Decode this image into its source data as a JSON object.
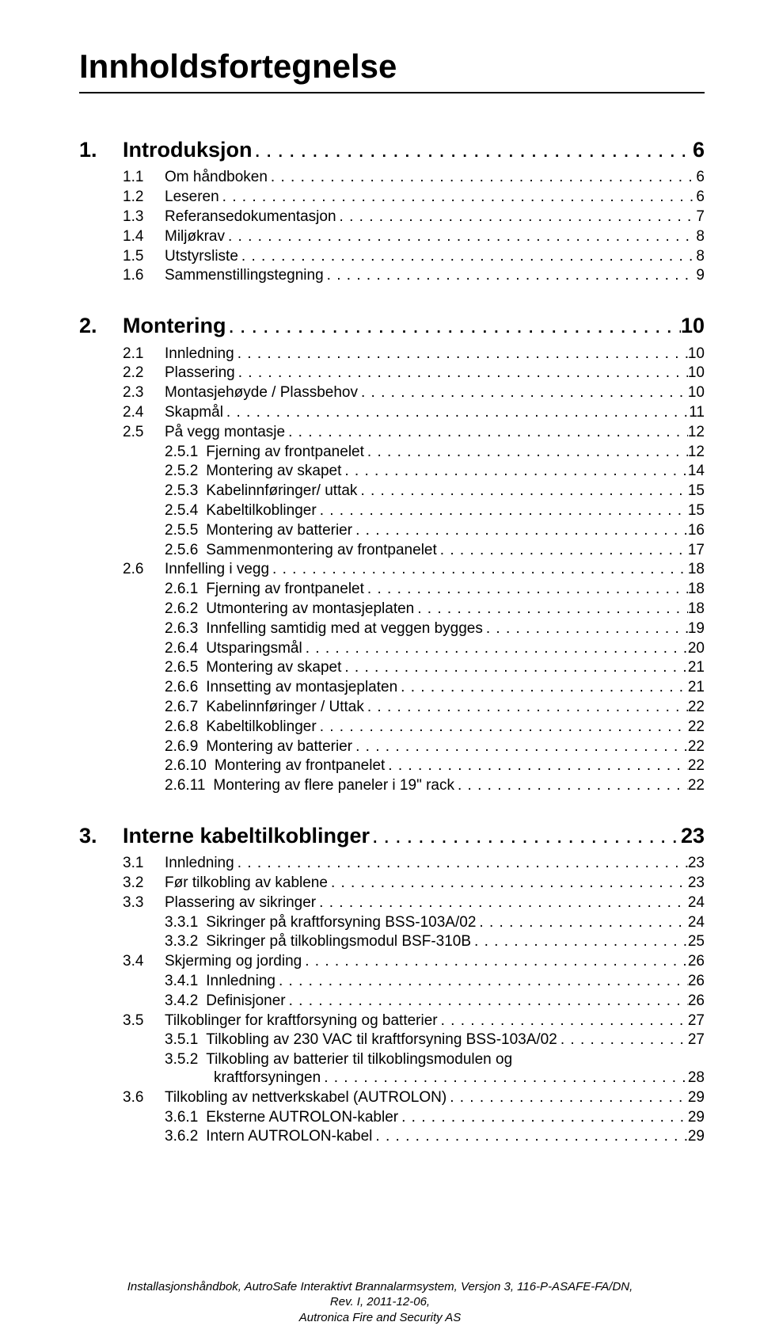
{
  "title": "Innholdsfortegnelse",
  "sections": [
    {
      "lvl": 1,
      "num": "1.",
      "label": "Introduksjon",
      "page": "6"
    },
    {
      "lvl": 2,
      "num": "1.1",
      "label": "Om håndboken",
      "page": "6"
    },
    {
      "lvl": 2,
      "num": "1.2",
      "label": "Leseren",
      "page": "6"
    },
    {
      "lvl": 2,
      "num": "1.3",
      "label": "Referansedokumentasjon",
      "page": "7"
    },
    {
      "lvl": 2,
      "num": "1.4",
      "label": "Miljøkrav",
      "page": "8"
    },
    {
      "lvl": 2,
      "num": "1.5",
      "label": "Utstyrsliste",
      "page": "8"
    },
    {
      "lvl": 2,
      "num": "1.6",
      "label": "Sammenstillingstegning",
      "page": "9"
    },
    {
      "lvl": 1,
      "num": "2.",
      "label": "Montering",
      "page": "10"
    },
    {
      "lvl": 2,
      "num": "2.1",
      "label": "Innledning",
      "page": "10"
    },
    {
      "lvl": 2,
      "num": "2.2",
      "label": "Plassering",
      "page": "10"
    },
    {
      "lvl": 2,
      "num": "2.3",
      "label": "Montasjehøyde / Plassbehov",
      "page": "10"
    },
    {
      "lvl": 2,
      "num": "2.4",
      "label": "Skapmål",
      "page": "11"
    },
    {
      "lvl": 2,
      "num": "2.5",
      "label": "På vegg montasje",
      "page": "12"
    },
    {
      "lvl": 3,
      "num": "2.5.1",
      "label": "Fjerning av frontpanelet",
      "page": "12"
    },
    {
      "lvl": 3,
      "num": "2.5.2",
      "label": "Montering av skapet",
      "page": "14"
    },
    {
      "lvl": 3,
      "num": "2.5.3",
      "label": "Kabelinnføringer/ uttak",
      "page": "15"
    },
    {
      "lvl": 3,
      "num": "2.5.4",
      "label": "Kabeltilkoblinger",
      "page": "15"
    },
    {
      "lvl": 3,
      "num": "2.5.5",
      "label": "Montering av batterier",
      "page": "16"
    },
    {
      "lvl": 3,
      "num": "2.5.6",
      "label": "Sammenmontering av frontpanelet",
      "page": "17"
    },
    {
      "lvl": 2,
      "num": "2.6",
      "label": "Innfelling i vegg",
      "page": "18"
    },
    {
      "lvl": 3,
      "num": "2.6.1",
      "label": "Fjerning av frontpanelet",
      "page": "18"
    },
    {
      "lvl": 3,
      "num": "2.6.2",
      "label": "Utmontering av montasjeplaten",
      "page": "18"
    },
    {
      "lvl": 3,
      "num": "2.6.3",
      "label": "Innfelling samtidig med at veggen bygges",
      "page": "19"
    },
    {
      "lvl": 3,
      "num": "2.6.4",
      "label": "Utsparingsmål",
      "page": "20"
    },
    {
      "lvl": 3,
      "num": "2.6.5",
      "label": "Montering av skapet",
      "page": "21"
    },
    {
      "lvl": 3,
      "num": "2.6.6",
      "label": "Innsetting av montasjeplaten",
      "page": "21"
    },
    {
      "lvl": 3,
      "num": "2.6.7",
      "label": "Kabelinnføringer / Uttak",
      "page": "22"
    },
    {
      "lvl": 3,
      "num": "2.6.8",
      "label": "Kabeltilkoblinger",
      "page": "22"
    },
    {
      "lvl": 3,
      "num": "2.6.9",
      "label": "Montering av batterier",
      "page": "22"
    },
    {
      "lvl": 3,
      "num": "2.6.10",
      "label": "Montering av frontpanelet",
      "page": "22"
    },
    {
      "lvl": 3,
      "num": "2.6.11",
      "label": "Montering av flere paneler i 19\" rack",
      "page": "22"
    },
    {
      "lvl": 1,
      "num": "3.",
      "label": "Interne kabeltilkoblinger",
      "page": "23"
    },
    {
      "lvl": 2,
      "num": "3.1",
      "label": "Innledning",
      "page": "23"
    },
    {
      "lvl": 2,
      "num": "3.2",
      "label": "Før tilkobling av kablene",
      "page": "23"
    },
    {
      "lvl": 2,
      "num": "3.3",
      "label": "Plassering av sikringer",
      "page": "24"
    },
    {
      "lvl": 3,
      "num": "3.3.1",
      "label": "Sikringer på kraftforsyning BSS-103A/02",
      "page": "24"
    },
    {
      "lvl": 3,
      "num": "3.3.2",
      "label": "Sikringer på tilkoblingsmodul BSF-310B",
      "page": "25"
    },
    {
      "lvl": 2,
      "num": "3.4",
      "label": "Skjerming og jording",
      "page": "26"
    },
    {
      "lvl": 3,
      "num": "3.4.1",
      "label": "Innledning",
      "page": "26"
    },
    {
      "lvl": 3,
      "num": "3.4.2",
      "label": "Definisjoner",
      "page": "26"
    },
    {
      "lvl": 2,
      "num": "3.5",
      "label": "Tilkoblinger for kraftforsyning og batterier",
      "page": "27"
    },
    {
      "lvl": 3,
      "num": "3.5.1",
      "label": "Tilkobling av 230 VAC til kraftforsyning BSS-103A/02",
      "page": "27"
    },
    {
      "lvl": 3,
      "num": "3.5.2",
      "label": "Tilkobling av batterier til tilkoblingsmodulen og",
      "label2": "kraftforsyningen",
      "page": "28"
    },
    {
      "lvl": 2,
      "num": "3.6",
      "label": "Tilkobling av nettverkskabel (AUTROLON)",
      "page": "29"
    },
    {
      "lvl": 3,
      "num": "3.6.1",
      "label": "Eksterne AUTROLON-kabler",
      "page": "29"
    },
    {
      "lvl": 3,
      "num": "3.6.2",
      "label": "Intern AUTROLON-kabel",
      "page": "29"
    }
  ],
  "footer": {
    "line1": "Installasjonshåndbok, AutroSafe Interaktivt Brannalarmsystem, Versjon 3, 116-P-ASAFE-FA/DN,",
    "line2": "Rev. I, 2011-12-06,",
    "line3": "Autronica Fire and Security AS"
  }
}
